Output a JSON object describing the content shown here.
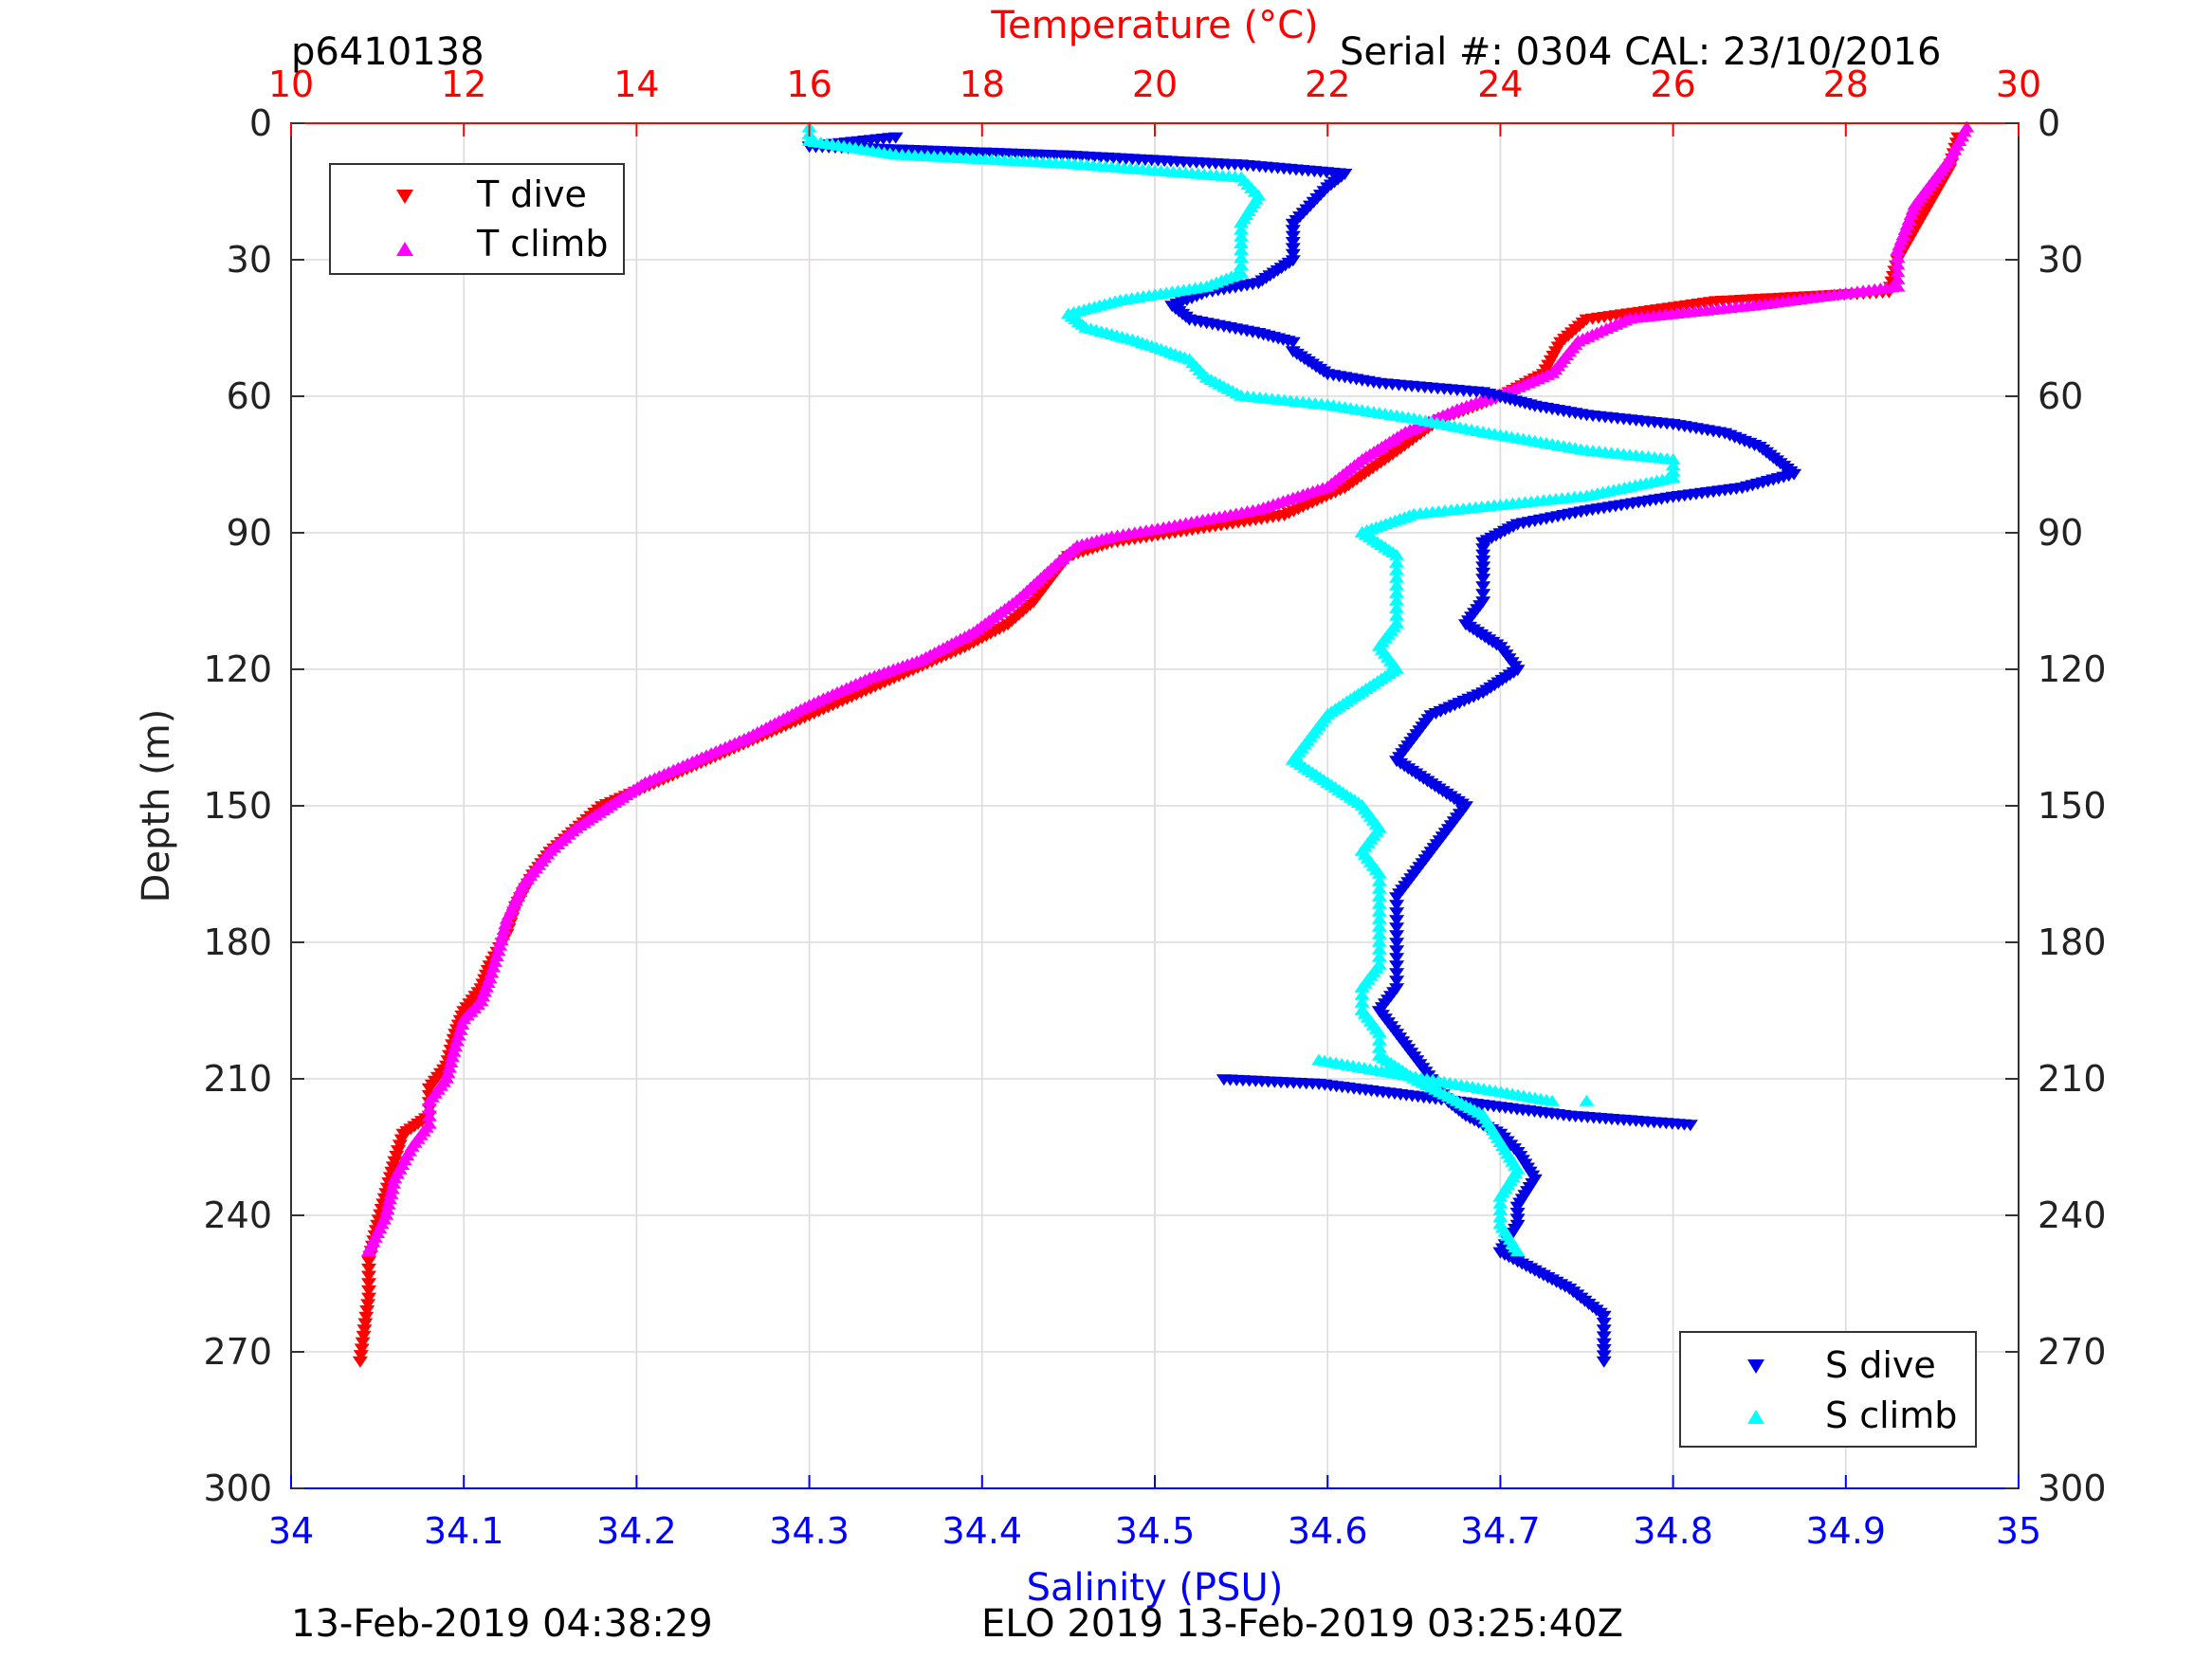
{
  "header": {
    "profile_id": "p6410138",
    "serial": "Serial #: 0304  CAL: 23/10/2016"
  },
  "footer": {
    "left": "13-Feb-2019 04:38:29",
    "right": "ELO 2019 13-Feb-2019 03:25:40Z"
  },
  "colors": {
    "t_dive": "#ff0000",
    "t_climb": "#ff00ff",
    "s_dive": "#0000e6",
    "s_climb": "#00ffff",
    "temperature_axis": "#ff0000",
    "salinity_axis": "#0000ff",
    "grid": "#dcdcdc",
    "temp_grid": "#ffcccc"
  },
  "chart_data": {
    "type": "scatter",
    "y_axis": {
      "label": "Depth (m)",
      "range": [
        0,
        300
      ],
      "reversed": true,
      "ticks": [
        "0",
        "30",
        "60",
        "90",
        "120",
        "150",
        "180",
        "210",
        "240",
        "270",
        "300"
      ]
    },
    "temperature_axis": {
      "label": "Temperature (°C)",
      "position": "top",
      "range": [
        10,
        30
      ],
      "ticks": [
        "10",
        "12",
        "14",
        "16",
        "18",
        "20",
        "22",
        "24",
        "26",
        "28",
        "30"
      ]
    },
    "salinity_axis": {
      "label": "Salinity (PSU)",
      "position": "bottom",
      "range": [
        34,
        35
      ],
      "ticks": [
        "34",
        "34.1",
        "34.2",
        "34.3",
        "34.4",
        "34.5",
        "34.6",
        "34.7",
        "34.8",
        "34.9",
        "35"
      ]
    },
    "grid": true,
    "legends": [
      {
        "placement": "top-left",
        "entries": [
          "T dive",
          "T climb"
        ]
      },
      {
        "placement": "bottom-right",
        "entries": [
          "S dive",
          "S climb"
        ]
      }
    ],
    "series": [
      {
        "name": "T dive",
        "axis": "temperature",
        "marker": "triangle-down",
        "points": [
          [
            29.3,
            3
          ],
          [
            29.2,
            10
          ],
          [
            28.9,
            20
          ],
          [
            28.6,
            30
          ],
          [
            28.5,
            37
          ],
          [
            26.5,
            39
          ],
          [
            25.0,
            43
          ],
          [
            24.7,
            48
          ],
          [
            24.5,
            55
          ],
          [
            24.0,
            60
          ],
          [
            23.3,
            65
          ],
          [
            22.8,
            72
          ],
          [
            22.2,
            80
          ],
          [
            21.5,
            86
          ],
          [
            20.5,
            89
          ],
          [
            19.5,
            92
          ],
          [
            19.0,
            95
          ],
          [
            18.8,
            100
          ],
          [
            18.6,
            105
          ],
          [
            18.3,
            110
          ],
          [
            17.8,
            115
          ],
          [
            17.2,
            120
          ],
          [
            16.6,
            125
          ],
          [
            16.0,
            130
          ],
          [
            15.4,
            135
          ],
          [
            14.8,
            140
          ],
          [
            14.2,
            145
          ],
          [
            13.6,
            150
          ],
          [
            13.3,
            155
          ],
          [
            13.0,
            160
          ],
          [
            12.8,
            165
          ],
          [
            12.6,
            172
          ],
          [
            12.5,
            178
          ],
          [
            12.3,
            185
          ],
          [
            12.2,
            190
          ],
          [
            12.0,
            195
          ],
          [
            11.9,
            200
          ],
          [
            11.8,
            207
          ],
          [
            11.6,
            212
          ],
          [
            11.6,
            218
          ],
          [
            11.3,
            222
          ],
          [
            11.2,
            228
          ],
          [
            11.1,
            235
          ],
          [
            11.0,
            242
          ],
          [
            10.9,
            250
          ],
          [
            10.9,
            258
          ],
          [
            10.85,
            265
          ],
          [
            10.8,
            272
          ]
        ]
      },
      {
        "name": "T climb",
        "axis": "temperature",
        "marker": "triangle-up",
        "points": [
          [
            29.4,
            1
          ],
          [
            29.2,
            8
          ],
          [
            28.8,
            18
          ],
          [
            28.6,
            28
          ],
          [
            28.6,
            36
          ],
          [
            27.0,
            40
          ],
          [
            25.5,
            43
          ],
          [
            24.9,
            48
          ],
          [
            24.6,
            55
          ],
          [
            24.1,
            59
          ],
          [
            23.5,
            63
          ],
          [
            22.9,
            68
          ],
          [
            22.4,
            74
          ],
          [
            22.0,
            80
          ],
          [
            21.2,
            85
          ],
          [
            20.1,
            89
          ],
          [
            19.5,
            91
          ],
          [
            19.1,
            93
          ],
          [
            18.8,
            98
          ],
          [
            18.4,
            105
          ],
          [
            17.9,
            112
          ],
          [
            17.3,
            118
          ],
          [
            16.7,
            122
          ],
          [
            16.0,
            128
          ],
          [
            15.3,
            135
          ],
          [
            14.7,
            140
          ],
          [
            14.1,
            145
          ],
          [
            13.7,
            150
          ],
          [
            13.3,
            155
          ],
          [
            13.0,
            160
          ],
          [
            12.7,
            167
          ],
          [
            12.5,
            175
          ],
          [
            12.4,
            182
          ],
          [
            12.3,
            188
          ],
          [
            12.2,
            193
          ],
          [
            12.0,
            197
          ],
          [
            11.9,
            203
          ],
          [
            11.8,
            210
          ],
          [
            11.6,
            215
          ],
          [
            11.6,
            220
          ],
          [
            11.4,
            225
          ],
          [
            11.2,
            232
          ],
          [
            11.1,
            240
          ],
          [
            10.9,
            248
          ]
        ]
      },
      {
        "name": "S dive",
        "axis": "salinity",
        "marker": "triangle-down",
        "points": [
          [
            34.35,
            3
          ],
          [
            34.3,
            5
          ],
          [
            34.45,
            7
          ],
          [
            34.55,
            9
          ],
          [
            34.61,
            11
          ],
          [
            34.6,
            14
          ],
          [
            34.59,
            18
          ],
          [
            34.58,
            22
          ],
          [
            34.58,
            26
          ],
          [
            34.58,
            30
          ],
          [
            34.56,
            35
          ],
          [
            34.53,
            37
          ],
          [
            34.51,
            40
          ],
          [
            34.52,
            43
          ],
          [
            34.56,
            46
          ],
          [
            34.58,
            48
          ],
          [
            34.58,
            50
          ],
          [
            34.6,
            55
          ],
          [
            34.63,
            57
          ],
          [
            34.66,
            58
          ],
          [
            34.69,
            59
          ],
          [
            34.7,
            60
          ],
          [
            34.72,
            62
          ],
          [
            34.75,
            64
          ],
          [
            34.8,
            66
          ],
          [
            34.83,
            68
          ],
          [
            34.85,
            71
          ],
          [
            34.86,
            74
          ],
          [
            34.87,
            77
          ],
          [
            34.84,
            80
          ],
          [
            34.8,
            82
          ],
          [
            34.75,
            85
          ],
          [
            34.71,
            88
          ],
          [
            34.69,
            92
          ],
          [
            34.69,
            96
          ],
          [
            34.69,
            100
          ],
          [
            34.69,
            105
          ],
          [
            34.68,
            110
          ],
          [
            34.7,
            115
          ],
          [
            34.71,
            120
          ],
          [
            34.69,
            125
          ],
          [
            34.66,
            130
          ],
          [
            34.65,
            135
          ],
          [
            34.64,
            140
          ],
          [
            34.66,
            145
          ],
          [
            34.68,
            150
          ],
          [
            34.67,
            155
          ],
          [
            34.66,
            160
          ],
          [
            34.65,
            165
          ],
          [
            34.64,
            170
          ],
          [
            34.64,
            175
          ],
          [
            34.64,
            180
          ],
          [
            34.64,
            185
          ],
          [
            34.64,
            190
          ],
          [
            34.63,
            195
          ],
          [
            34.64,
            200
          ],
          [
            34.65,
            205
          ],
          [
            34.66,
            210
          ],
          [
            34.67,
            215
          ],
          [
            34.68,
            218
          ],
          [
            34.7,
            222
          ],
          [
            34.71,
            226
          ],
          [
            34.72,
            232
          ],
          [
            34.71,
            238
          ],
          [
            34.71,
            242
          ],
          [
            34.7,
            248
          ],
          [
            34.72,
            252
          ],
          [
            34.74,
            256
          ],
          [
            34.76,
            262
          ],
          [
            34.76,
            268
          ],
          [
            34.76,
            272
          ],
          [
            34.54,
            210
          ],
          [
            34.595,
            211
          ],
          [
            34.74,
            218
          ],
          [
            34.81,
            220
          ]
        ]
      },
      {
        "name": "S climb",
        "axis": "salinity",
        "marker": "triangle-up",
        "points": [
          [
            34.3,
            1
          ],
          [
            34.3,
            4
          ],
          [
            34.35,
            7
          ],
          [
            34.45,
            9
          ],
          [
            34.55,
            12
          ],
          [
            34.56,
            16
          ],
          [
            34.55,
            22
          ],
          [
            34.55,
            28
          ],
          [
            34.55,
            33
          ],
          [
            34.53,
            36
          ],
          [
            34.48,
            39
          ],
          [
            34.45,
            42
          ],
          [
            34.46,
            45
          ],
          [
            34.49,
            48
          ],
          [
            34.52,
            52
          ],
          [
            34.53,
            56
          ],
          [
            34.55,
            60
          ],
          [
            34.6,
            62
          ],
          [
            34.65,
            65
          ],
          [
            34.69,
            68
          ],
          [
            34.75,
            72
          ],
          [
            34.8,
            74
          ],
          [
            34.8,
            78
          ],
          [
            34.75,
            82
          ],
          [
            34.7,
            84
          ],
          [
            34.65,
            86
          ],
          [
            34.62,
            90
          ],
          [
            34.64,
            95
          ],
          [
            34.64,
            100
          ],
          [
            34.64,
            105
          ],
          [
            34.64,
            110
          ],
          [
            34.63,
            115
          ],
          [
            34.64,
            120
          ],
          [
            34.62,
            125
          ],
          [
            34.6,
            130
          ],
          [
            34.59,
            135
          ],
          [
            34.58,
            140
          ],
          [
            34.6,
            145
          ],
          [
            34.62,
            150
          ],
          [
            34.63,
            155
          ],
          [
            34.62,
            160
          ],
          [
            34.63,
            165
          ],
          [
            34.63,
            170
          ],
          [
            34.63,
            175
          ],
          [
            34.63,
            180
          ],
          [
            34.63,
            185
          ],
          [
            34.62,
            190
          ],
          [
            34.62,
            195
          ],
          [
            34.63,
            200
          ],
          [
            34.63,
            205
          ],
          [
            34.65,
            210
          ],
          [
            34.67,
            214
          ],
          [
            34.69,
            218
          ],
          [
            34.7,
            224
          ],
          [
            34.71,
            230
          ],
          [
            34.7,
            236
          ],
          [
            34.7,
            242
          ],
          [
            34.71,
            248
          ],
          [
            34.595,
            206
          ],
          [
            34.73,
            215
          ],
          [
            34.75,
            215
          ]
        ]
      }
    ]
  }
}
